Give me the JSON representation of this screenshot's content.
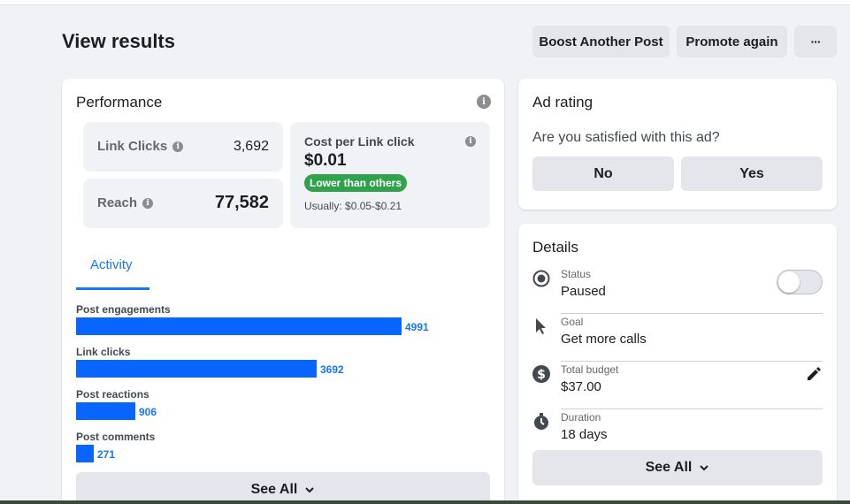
{
  "page": {
    "title": "View results"
  },
  "header": {
    "boost_label": "Boost Another Post",
    "promote_label": "Promote again",
    "more_label": "···"
  },
  "performance": {
    "title": "Performance",
    "link_clicks_label": "Link Clicks",
    "link_clicks_value": "3,692",
    "reach_label": "Reach",
    "reach_value": "77,582",
    "cpc_label": "Cost per Link click",
    "cpc_value": "$0.01",
    "cpc_badge": "Lower than others",
    "cpc_usual": "Usually: $0.05-$0.21",
    "tab_activity": "Activity",
    "bars": [
      {
        "label": "Post engagements",
        "value": 4991,
        "value_text": "4991"
      },
      {
        "label": "Link clicks",
        "value": 3692,
        "value_text": "3692"
      },
      {
        "label": "Post reactions",
        "value": 906,
        "value_text": "906"
      },
      {
        "label": "Post comments",
        "value": 271,
        "value_text": "271"
      }
    ],
    "see_all": "See All"
  },
  "ad_rating": {
    "title": "Ad rating",
    "question": "Are you satisfied with this ad?",
    "no_label": "No",
    "yes_label": "Yes"
  },
  "details": {
    "title": "Details",
    "status_label": "Status",
    "status_value": "Paused",
    "status_on": false,
    "goal_label": "Goal",
    "goal_value": "Get more calls",
    "budget_label": "Total budget",
    "budget_value": "$37.00",
    "duration_label": "Duration",
    "duration_value": "18 days",
    "see_all": "See All"
  },
  "colors": {
    "accent": "#1877f2",
    "bar": "#0866ff",
    "badge": "#31a24c"
  }
}
